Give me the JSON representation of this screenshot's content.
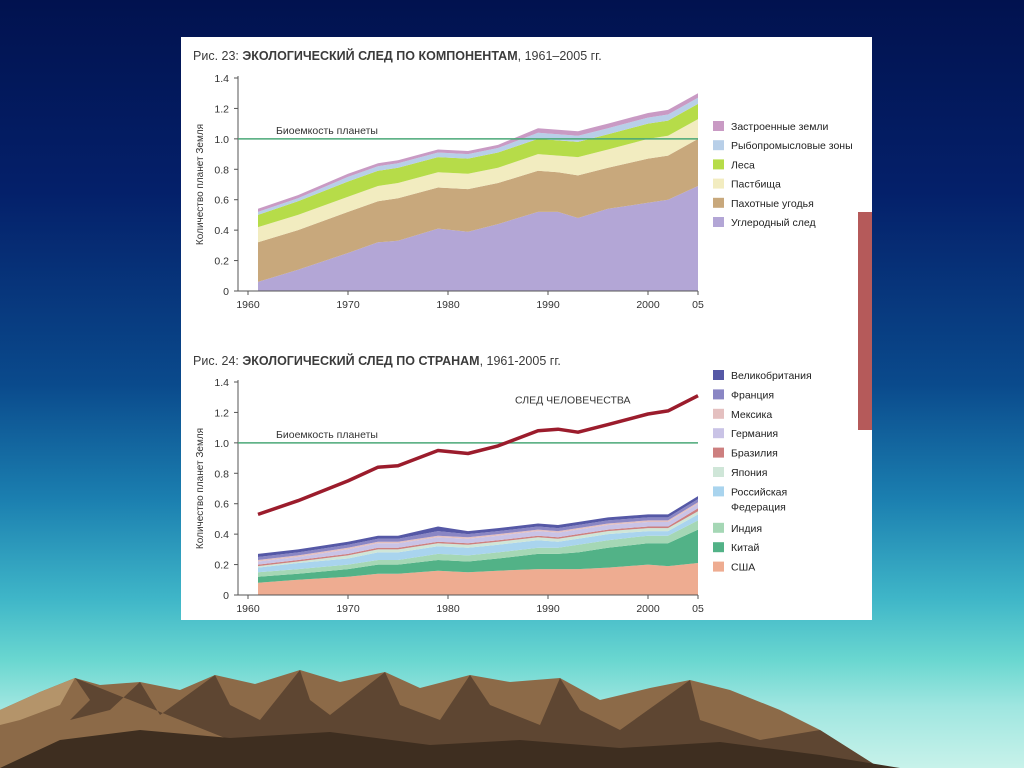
{
  "colors": {
    "bio_line": "#4aa877",
    "human_line": "#9b1c2c",
    "built": "#c99ac4",
    "fish": "#b8cfe8",
    "forest": "#b6dc49",
    "grazing": "#f2ecc0",
    "crop": "#c8a87c",
    "carbon": "#b3a6d6",
    "uk": "#5558a6",
    "france": "#8a86c4",
    "mexico": "#e4c0c0",
    "germany": "#c9c3e6",
    "brazil": "#cd7f7f",
    "japan": "#cfe6d8",
    "russia": "#a9d4ee",
    "india": "#a5d7b5",
    "china": "#52b287",
    "usa": "#eeac91",
    "accent_bar": "#b55a5a"
  },
  "chart_data": [
    {
      "type": "area",
      "stacked": true,
      "title_prefix": "Рис. 23: ",
      "title": "ЭКОЛОГИЧЕСКИЙ СЛЕД ПО КОМПОНЕНТАМ",
      "title_suffix": ", 1961–2005 гг.",
      "ylabel": "Количество планет Земля",
      "xlabel": "",
      "ylim": [
        0,
        1.4
      ],
      "xlim": [
        1959,
        2005
      ],
      "yticks": [
        "0",
        "0.2",
        "0.4",
        "0.6",
        "0.8",
        "1.0",
        "1.2",
        "1.4"
      ],
      "xticks": [
        "1960",
        "1970",
        "1980",
        "1990",
        "2000",
        "05"
      ],
      "legend_position": "right",
      "reference_line": {
        "value": 1.0,
        "label": "Биоемкость планеты"
      },
      "x": [
        1961,
        1965,
        1970,
        1973,
        1975,
        1979,
        1982,
        1985,
        1989,
        1991,
        1993,
        1996,
        2000,
        2002,
        2005
      ],
      "series": [
        {
          "name": "Углеродный след",
          "color_key": "carbon",
          "values": [
            0.06,
            0.14,
            0.25,
            0.32,
            0.33,
            0.41,
            0.39,
            0.44,
            0.52,
            0.52,
            0.48,
            0.54,
            0.58,
            0.6,
            0.69
          ]
        },
        {
          "name": "Пахотные угодья",
          "color_key": "crop",
          "values": [
            0.26,
            0.26,
            0.27,
            0.27,
            0.28,
            0.27,
            0.28,
            0.27,
            0.27,
            0.26,
            0.28,
            0.27,
            0.29,
            0.29,
            0.31
          ]
        },
        {
          "name": "Пастбища",
          "color_key": "grazing",
          "values": [
            0.1,
            0.1,
            0.1,
            0.1,
            0.1,
            0.1,
            0.1,
            0.1,
            0.11,
            0.11,
            0.12,
            0.12,
            0.13,
            0.13,
            0.13
          ]
        },
        {
          "name": "Леса",
          "color_key": "forest",
          "values": [
            0.08,
            0.09,
            0.1,
            0.1,
            0.1,
            0.1,
            0.1,
            0.1,
            0.1,
            0.1,
            0.1,
            0.1,
            0.1,
            0.1,
            0.1
          ]
        },
        {
          "name": "Рыбопромысловые зоны",
          "color_key": "fish",
          "values": [
            0.02,
            0.02,
            0.03,
            0.03,
            0.03,
            0.03,
            0.03,
            0.03,
            0.04,
            0.04,
            0.04,
            0.04,
            0.04,
            0.04,
            0.04
          ]
        },
        {
          "name": "Застроенные земли",
          "color_key": "built",
          "values": [
            0.02,
            0.02,
            0.02,
            0.02,
            0.02,
            0.02,
            0.02,
            0.02,
            0.03,
            0.03,
            0.03,
            0.03,
            0.03,
            0.03,
            0.03
          ]
        }
      ]
    },
    {
      "type": "area",
      "stacked": true,
      "title_prefix": "Рис. 24: ",
      "title": "ЭКОЛОГИЧЕСКИЙ СЛЕД ПО СТРАНАМ",
      "title_suffix": ", 1961-2005 гг.",
      "ylabel": "Количество планет Земля",
      "xlabel": "",
      "ylim": [
        0,
        1.4
      ],
      "xlim": [
        1959,
        2005
      ],
      "yticks": [
        "0",
        "0.2",
        "0.4",
        "0.6",
        "0.8",
        "1.0",
        "1.2",
        "1.4"
      ],
      "xticks": [
        "1960",
        "1970",
        "1980",
        "1990",
        "2000",
        "05"
      ],
      "legend_position": "right",
      "reference_line": {
        "value": 1.0,
        "label": "Биоемкость планеты"
      },
      "total_line": {
        "label": "СЛЕД ЧЕЛОВЕЧЕСТВА",
        "x": [
          1961,
          1965,
          1970,
          1973,
          1975,
          1979,
          1982,
          1985,
          1989,
          1991,
          1993,
          1996,
          2000,
          2002,
          2005
        ],
        "values": [
          0.53,
          0.62,
          0.75,
          0.84,
          0.85,
          0.95,
          0.93,
          0.98,
          1.08,
          1.09,
          1.07,
          1.12,
          1.19,
          1.21,
          1.31
        ]
      },
      "x": [
        1961,
        1965,
        1970,
        1973,
        1975,
        1979,
        1982,
        1985,
        1989,
        1991,
        1993,
        1996,
        2000,
        2002,
        2005
      ],
      "series": [
        {
          "name": "США",
          "color_key": "usa",
          "values": [
            0.08,
            0.1,
            0.12,
            0.14,
            0.14,
            0.16,
            0.15,
            0.16,
            0.17,
            0.17,
            0.17,
            0.18,
            0.2,
            0.19,
            0.21
          ]
        },
        {
          "name": "Китай",
          "color_key": "china",
          "values": [
            0.04,
            0.04,
            0.05,
            0.06,
            0.06,
            0.07,
            0.07,
            0.08,
            0.1,
            0.1,
            0.11,
            0.13,
            0.14,
            0.15,
            0.22
          ]
        },
        {
          "name": "Индия",
          "color_key": "india",
          "values": [
            0.03,
            0.03,
            0.03,
            0.03,
            0.03,
            0.04,
            0.04,
            0.04,
            0.04,
            0.04,
            0.05,
            0.05,
            0.05,
            0.05,
            0.06
          ]
        },
        {
          "name": "Российская",
          "name_line2": "Федерация",
          "color_key": "russia",
          "values": [
            0.03,
            0.04,
            0.04,
            0.05,
            0.05,
            0.05,
            0.05,
            0.05,
            0.05,
            0.04,
            0.04,
            0.04,
            0.03,
            0.03,
            0.04
          ]
        },
        {
          "name": "Япония",
          "color_key": "japan",
          "values": [
            0.01,
            0.01,
            0.02,
            0.02,
            0.02,
            0.02,
            0.02,
            0.02,
            0.02,
            0.02,
            0.02,
            0.02,
            0.02,
            0.02,
            0.02
          ]
        },
        {
          "name": "Бразилия",
          "color_key": "brazil",
          "values": [
            0.01,
            0.01,
            0.01,
            0.01,
            0.01,
            0.01,
            0.01,
            0.01,
            0.01,
            0.01,
            0.01,
            0.01,
            0.01,
            0.01,
            0.02
          ]
        },
        {
          "name": "Германия",
          "color_key": "germany",
          "values": [
            0.02,
            0.02,
            0.03,
            0.03,
            0.03,
            0.03,
            0.03,
            0.03,
            0.03,
            0.03,
            0.03,
            0.03,
            0.03,
            0.03,
            0.03
          ]
        },
        {
          "name": "Мексика",
          "color_key": "mexico",
          "values": [
            0.01,
            0.01,
            0.01,
            0.01,
            0.01,
            0.01,
            0.01,
            0.01,
            0.01,
            0.01,
            0.01,
            0.01,
            0.01,
            0.01,
            0.01
          ]
        },
        {
          "name": "Франция",
          "color_key": "france",
          "values": [
            0.02,
            0.02,
            0.02,
            0.02,
            0.02,
            0.03,
            0.02,
            0.02,
            0.02,
            0.02,
            0.02,
            0.02,
            0.02,
            0.02,
            0.02
          ]
        },
        {
          "name": "Великобритания",
          "color_key": "uk",
          "values": [
            0.02,
            0.02,
            0.02,
            0.02,
            0.02,
            0.03,
            0.02,
            0.02,
            0.02,
            0.02,
            0.02,
            0.02,
            0.02,
            0.02,
            0.02
          ]
        }
      ]
    }
  ]
}
